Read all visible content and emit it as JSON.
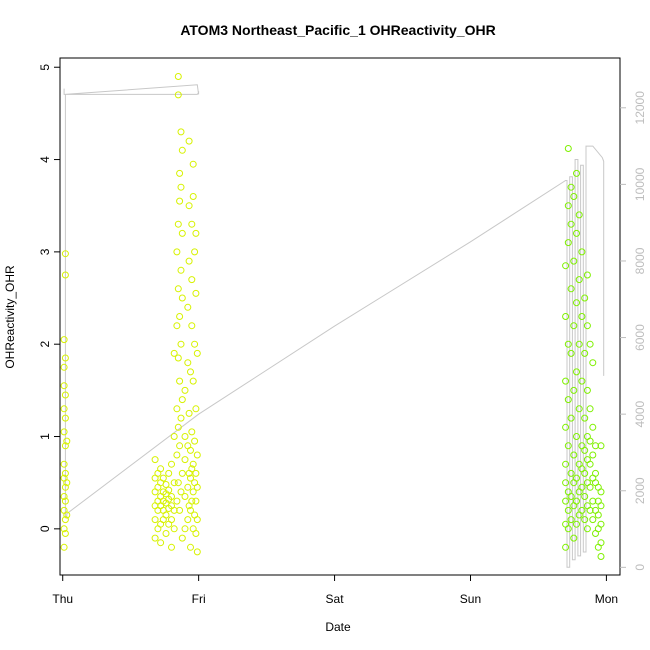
{
  "chart_data": {
    "type": "scatter",
    "title": "ATOM3 Northeast_Pacific_1 OHReactivity_OHR",
    "xlabel": "Date",
    "ylabel": "OHReactivity_OHR",
    "x_ticks": [
      "Thu",
      "Fri",
      "Sat",
      "Sun",
      "Mon"
    ],
    "x_tick_days": [
      0,
      1,
      2,
      3,
      4
    ],
    "xlim": [
      -0.02,
      4.1
    ],
    "ylim": [
      -0.5,
      5.1
    ],
    "y_ticks": [
      0,
      1,
      2,
      3,
      4,
      5
    ],
    "y2lim": [
      -200,
      13300
    ],
    "y2_ticks": [
      0,
      2000,
      4000,
      6000,
      8000,
      10000,
      12000
    ],
    "y2_label": "",
    "grid": false,
    "colors": {
      "points_early": "#d7f200",
      "points_late": "#7ff000",
      "line": "#c8c8c8",
      "axis": "#000000",
      "right_axis": "#bdbdbd"
    },
    "series": [
      {
        "kind": "points",
        "color": "#d7f200",
        "points": [
          [
            0.01,
            -0.2
          ],
          [
            0.01,
            0.0
          ],
          [
            0.01,
            0.2
          ],
          [
            0.01,
            0.35
          ],
          [
            0.01,
            0.55
          ],
          [
            0.01,
            0.7
          ],
          [
            0.01,
            1.05
          ],
          [
            0.01,
            1.3
          ],
          [
            0.01,
            1.55
          ],
          [
            0.01,
            1.75
          ],
          [
            0.01,
            2.05
          ],
          [
            0.02,
            -0.05
          ],
          [
            0.02,
            0.1
          ],
          [
            0.02,
            0.3
          ],
          [
            0.02,
            0.45
          ],
          [
            0.02,
            0.6
          ],
          [
            0.02,
            0.9
          ],
          [
            0.02,
            1.2
          ],
          [
            0.02,
            1.45
          ],
          [
            0.02,
            1.85
          ],
          [
            0.02,
            2.75
          ],
          [
            0.02,
            2.98
          ],
          [
            0.03,
            0.15
          ],
          [
            0.03,
            0.5
          ],
          [
            0.03,
            0.95
          ],
          [
            0.68,
            -0.1
          ],
          [
            0.68,
            0.1
          ],
          [
            0.68,
            0.25
          ],
          [
            0.68,
            0.4
          ],
          [
            0.68,
            0.55
          ],
          [
            0.68,
            0.75
          ],
          [
            0.7,
            0.0
          ],
          [
            0.7,
            0.2
          ],
          [
            0.7,
            0.3
          ],
          [
            0.7,
            0.45
          ],
          [
            0.7,
            0.6
          ],
          [
            0.72,
            -0.15
          ],
          [
            0.72,
            0.05
          ],
          [
            0.72,
            0.25
          ],
          [
            0.72,
            0.35
          ],
          [
            0.72,
            0.5
          ],
          [
            0.72,
            0.65
          ],
          [
            0.74,
            0.1
          ],
          [
            0.74,
            0.2
          ],
          [
            0.74,
            0.3
          ],
          [
            0.74,
            0.4
          ],
          [
            0.74,
            0.55
          ],
          [
            0.76,
            -0.05
          ],
          [
            0.76,
            0.15
          ],
          [
            0.76,
            0.28
          ],
          [
            0.76,
            0.38
          ],
          [
            0.76,
            0.48
          ],
          [
            0.78,
            0.05
          ],
          [
            0.78,
            0.22
          ],
          [
            0.78,
            0.32
          ],
          [
            0.78,
            0.42
          ],
          [
            0.78,
            0.6
          ],
          [
            0.8,
            -0.2
          ],
          [
            0.8,
            0.1
          ],
          [
            0.8,
            0.25
          ],
          [
            0.8,
            0.35
          ],
          [
            0.8,
            0.7
          ],
          [
            0.82,
            0.0
          ],
          [
            0.82,
            0.2
          ],
          [
            0.82,
            0.5
          ],
          [
            0.82,
            1.0
          ],
          [
            0.82,
            1.9
          ],
          [
            0.84,
            0.3
          ],
          [
            0.84,
            0.8
          ],
          [
            0.84,
            1.3
          ],
          [
            0.84,
            2.2
          ],
          [
            0.84,
            3.0
          ],
          [
            0.85,
            0.5
          ],
          [
            0.85,
            1.1
          ],
          [
            0.85,
            1.85
          ],
          [
            0.85,
            2.6
          ],
          [
            0.85,
            3.3
          ],
          [
            0.85,
            4.7
          ],
          [
            0.85,
            4.9
          ],
          [
            0.86,
            0.2
          ],
          [
            0.86,
            0.9
          ],
          [
            0.86,
            1.6
          ],
          [
            0.86,
            2.3
          ],
          [
            0.86,
            3.55
          ],
          [
            0.86,
            3.85
          ],
          [
            0.87,
            0.4
          ],
          [
            0.87,
            1.2
          ],
          [
            0.87,
            2.0
          ],
          [
            0.87,
            2.8
          ],
          [
            0.87,
            3.7
          ],
          [
            0.87,
            4.3
          ],
          [
            0.88,
            -0.1
          ],
          [
            0.88,
            0.6
          ],
          [
            0.88,
            1.4
          ],
          [
            0.88,
            2.5
          ],
          [
            0.88,
            3.2
          ],
          [
            0.88,
            4.1
          ],
          [
            0.9,
            0.0
          ],
          [
            0.9,
            0.35
          ],
          [
            0.9,
            0.75
          ],
          [
            0.9,
            1.0
          ],
          [
            0.9,
            1.5
          ],
          [
            0.92,
            0.1
          ],
          [
            0.92,
            0.45
          ],
          [
            0.92,
            0.9
          ],
          [
            0.92,
            1.8
          ],
          [
            0.92,
            2.4
          ],
          [
            0.93,
            0.25
          ],
          [
            0.93,
            0.6
          ],
          [
            0.93,
            1.25
          ],
          [
            0.93,
            2.9
          ],
          [
            0.93,
            3.5
          ],
          [
            0.93,
            4.2
          ],
          [
            0.94,
            -0.2
          ],
          [
            0.94,
            0.2
          ],
          [
            0.94,
            0.55
          ],
          [
            0.94,
            0.85
          ],
          [
            0.94,
            1.7
          ],
          [
            0.95,
            0.3
          ],
          [
            0.95,
            0.65
          ],
          [
            0.95,
            1.05
          ],
          [
            0.95,
            2.2
          ],
          [
            0.95,
            2.7
          ],
          [
            0.95,
            3.3
          ],
          [
            0.96,
            0.0
          ],
          [
            0.96,
            0.4
          ],
          [
            0.96,
            0.7
          ],
          [
            0.96,
            1.6
          ],
          [
            0.96,
            3.6
          ],
          [
            0.96,
            3.95
          ],
          [
            0.97,
            0.15
          ],
          [
            0.97,
            0.5
          ],
          [
            0.97,
            0.95
          ],
          [
            0.97,
            2.0
          ],
          [
            0.97,
            3.0
          ],
          [
            0.98,
            -0.05
          ],
          [
            0.98,
            0.3
          ],
          [
            0.98,
            0.6
          ],
          [
            0.98,
            1.3
          ],
          [
            0.98,
            2.55
          ],
          [
            0.98,
            3.2
          ],
          [
            0.99,
            -0.25
          ],
          [
            0.99,
            0.1
          ],
          [
            0.99,
            0.45
          ],
          [
            0.99,
            0.8
          ],
          [
            0.99,
            1.9
          ]
        ]
      },
      {
        "kind": "points",
        "color": "#7ff000",
        "points": [
          [
            3.7,
            -0.2
          ],
          [
            3.7,
            0.05
          ],
          [
            3.7,
            0.3
          ],
          [
            3.7,
            0.5
          ],
          [
            3.7,
            0.7
          ],
          [
            3.7,
            1.1
          ],
          [
            3.7,
            1.6
          ],
          [
            3.7,
            2.3
          ],
          [
            3.7,
            2.85
          ],
          [
            3.72,
            0.0
          ],
          [
            3.72,
            0.2
          ],
          [
            3.72,
            0.4
          ],
          [
            3.72,
            0.9
          ],
          [
            3.72,
            1.4
          ],
          [
            3.72,
            2.0
          ],
          [
            3.72,
            3.1
          ],
          [
            3.72,
            3.5
          ],
          [
            3.72,
            4.12
          ],
          [
            3.74,
            0.1
          ],
          [
            3.74,
            0.35
          ],
          [
            3.74,
            0.6
          ],
          [
            3.74,
            1.2
          ],
          [
            3.74,
            1.9
          ],
          [
            3.74,
            2.6
          ],
          [
            3.74,
            3.3
          ],
          [
            3.74,
            3.7
          ],
          [
            3.76,
            -0.1
          ],
          [
            3.76,
            0.25
          ],
          [
            3.76,
            0.5
          ],
          [
            3.76,
            0.8
          ],
          [
            3.76,
            1.5
          ],
          [
            3.76,
            2.2
          ],
          [
            3.76,
            2.9
          ],
          [
            3.76,
            3.6
          ],
          [
            3.78,
            0.05
          ],
          [
            3.78,
            0.3
          ],
          [
            3.78,
            0.55
          ],
          [
            3.78,
            1.0
          ],
          [
            3.78,
            1.7
          ],
          [
            3.78,
            2.45
          ],
          [
            3.78,
            3.2
          ],
          [
            3.78,
            3.85
          ],
          [
            3.8,
            0.15
          ],
          [
            3.8,
            0.4
          ],
          [
            3.8,
            0.7
          ],
          [
            3.8,
            1.3
          ],
          [
            3.8,
            2.0
          ],
          [
            3.8,
            2.7
          ],
          [
            3.8,
            3.4
          ],
          [
            3.82,
            0.2
          ],
          [
            3.82,
            0.45
          ],
          [
            3.82,
            0.65
          ],
          [
            3.82,
            0.9
          ],
          [
            3.82,
            1.6
          ],
          [
            3.82,
            2.3
          ],
          [
            3.82,
            3.0
          ],
          [
            3.84,
            0.1
          ],
          [
            3.84,
            0.35
          ],
          [
            3.84,
            0.6
          ],
          [
            3.84,
            0.85
          ],
          [
            3.84,
            1.2
          ],
          [
            3.84,
            1.9
          ],
          [
            3.84,
            2.5
          ],
          [
            3.86,
            0.0
          ],
          [
            3.86,
            0.25
          ],
          [
            3.86,
            0.5
          ],
          [
            3.86,
            0.75
          ],
          [
            3.86,
            1.0
          ],
          [
            3.86,
            1.5
          ],
          [
            3.86,
            2.2
          ],
          [
            3.86,
            2.75
          ],
          [
            3.88,
            0.2
          ],
          [
            3.88,
            0.45
          ],
          [
            3.88,
            0.7
          ],
          [
            3.88,
            0.95
          ],
          [
            3.88,
            1.3
          ],
          [
            3.88,
            2.0
          ],
          [
            3.9,
            0.1
          ],
          [
            3.9,
            0.3
          ],
          [
            3.9,
            0.55
          ],
          [
            3.9,
            0.8
          ],
          [
            3.9,
            1.1
          ],
          [
            3.9,
            1.8
          ],
          [
            3.92,
            -0.05
          ],
          [
            3.92,
            0.2
          ],
          [
            3.92,
            0.5
          ],
          [
            3.92,
            0.6
          ],
          [
            3.92,
            0.9
          ],
          [
            3.94,
            -0.2
          ],
          [
            3.94,
            0.0
          ],
          [
            3.94,
            0.15
          ],
          [
            3.94,
            0.3
          ],
          [
            3.94,
            0.45
          ],
          [
            3.96,
            -0.3
          ],
          [
            3.96,
            -0.15
          ],
          [
            3.96,
            0.05
          ],
          [
            3.96,
            0.25
          ],
          [
            3.96,
            0.4
          ],
          [
            3.96,
            0.9
          ]
        ]
      },
      {
        "kind": "line",
        "axis": "right",
        "color": "#c8c8c8",
        "points": [
          [
            0.01,
            12500
          ],
          [
            0.01,
            12350
          ],
          [
            0.03,
            12350
          ],
          [
            0.8,
            12350
          ],
          [
            0.9,
            12350
          ],
          [
            0.99,
            12350
          ],
          [
            1.0,
            12400
          ],
          [
            1.0,
            12350
          ],
          [
            0.99,
            12600
          ],
          [
            0.02,
            12350
          ],
          [
            0.02,
            1350
          ],
          [
            0.03,
            1300
          ],
          [
            0.03,
            1400
          ],
          [
            1.0,
            4000
          ],
          [
            2.0,
            6300
          ],
          [
            3.0,
            8500
          ],
          [
            3.7,
            10100
          ],
          [
            3.71,
            10100
          ],
          [
            3.71,
            0
          ],
          [
            3.73,
            0
          ],
          [
            3.73,
            10200
          ],
          [
            3.75,
            10200
          ],
          [
            3.75,
            200
          ],
          [
            3.77,
            200
          ],
          [
            3.77,
            10650
          ],
          [
            3.79,
            10650
          ],
          [
            3.79,
            300
          ],
          [
            3.81,
            300
          ],
          [
            3.81,
            10500
          ],
          [
            3.83,
            10500
          ],
          [
            3.83,
            400
          ],
          [
            3.85,
            400
          ],
          [
            3.85,
            11000
          ],
          [
            3.9,
            11000
          ],
          [
            3.97,
            10700
          ],
          [
            3.98,
            10600
          ],
          [
            3.98,
            5000
          ]
        ]
      }
    ]
  }
}
